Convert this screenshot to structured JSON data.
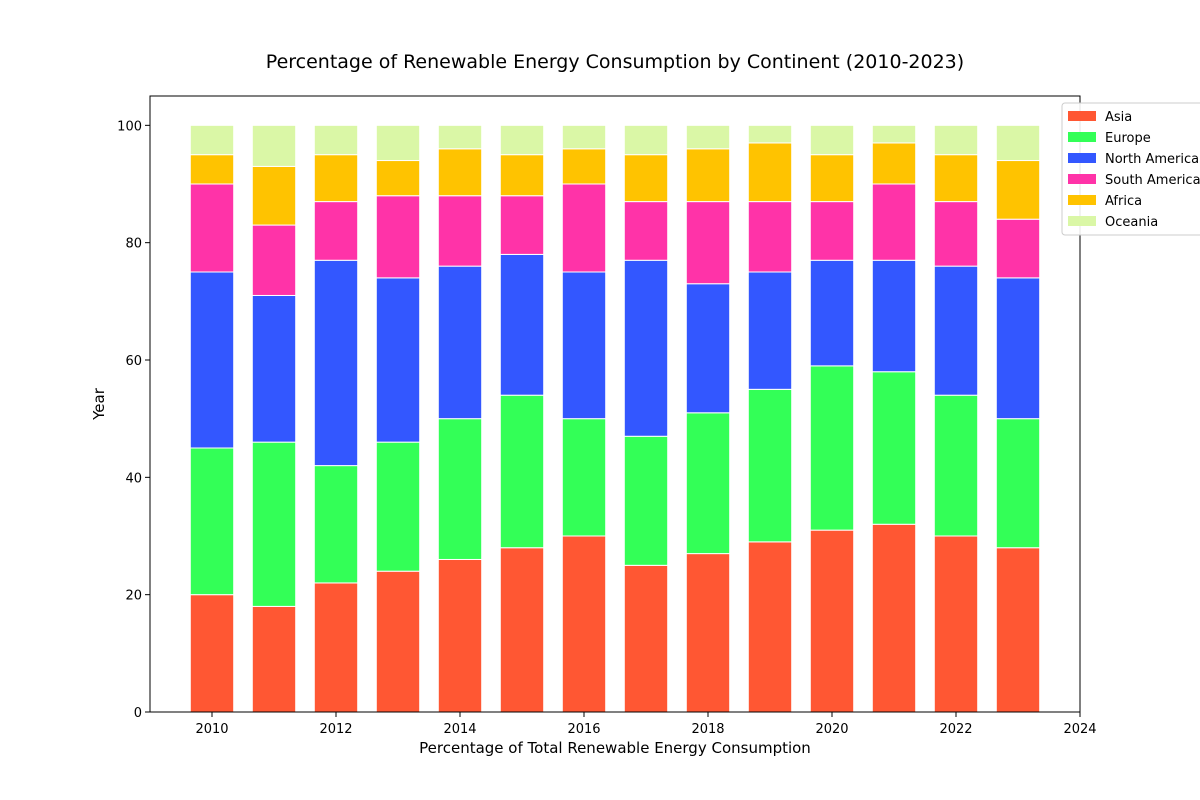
{
  "chart_data": {
    "type": "bar",
    "stacked": true,
    "title": "Percentage of Renewable Energy Consumption by Continent (2010-2023)",
    "xlabel": "Percentage of Total Renewable Energy Consumption",
    "ylabel": "Year",
    "x": [
      2010,
      2011,
      2012,
      2013,
      2014,
      2015,
      2016,
      2017,
      2018,
      2019,
      2020,
      2021,
      2022,
      2023
    ],
    "xlim": [
      2009,
      2024
    ],
    "xticks": [
      2010,
      2012,
      2014,
      2016,
      2018,
      2020,
      2022,
      2024
    ],
    "ylim": [
      0,
      105
    ],
    "yticks": [
      0,
      20,
      40,
      60,
      80,
      100
    ],
    "grid": false,
    "legend_position": "top-right",
    "series": [
      {
        "name": "Asia",
        "color": "#ff5733",
        "values": [
          20,
          18,
          22,
          24,
          26,
          28,
          30,
          25,
          27,
          29,
          31,
          32,
          30,
          28
        ]
      },
      {
        "name": "Europe",
        "color": "#33ff57",
        "values": [
          25,
          28,
          20,
          22,
          24,
          26,
          20,
          22,
          24,
          26,
          28,
          26,
          24,
          22
        ]
      },
      {
        "name": "North America",
        "color": "#3357ff",
        "values": [
          30,
          25,
          35,
          28,
          26,
          24,
          25,
          30,
          22,
          20,
          18,
          19,
          22,
          24
        ]
      },
      {
        "name": "South America",
        "color": "#ff33a8",
        "values": [
          15,
          12,
          10,
          14,
          12,
          10,
          15,
          10,
          14,
          12,
          10,
          13,
          11,
          10
        ]
      },
      {
        "name": "Africa",
        "color": "#ffc300",
        "values": [
          5,
          10,
          8,
          6,
          8,
          7,
          6,
          8,
          9,
          10,
          8,
          7,
          8,
          10
        ]
      },
      {
        "name": "Oceania",
        "color": "#daf7a6",
        "values": [
          5,
          7,
          5,
          6,
          4,
          5,
          4,
          5,
          4,
          3,
          5,
          3,
          5,
          6
        ]
      }
    ]
  }
}
